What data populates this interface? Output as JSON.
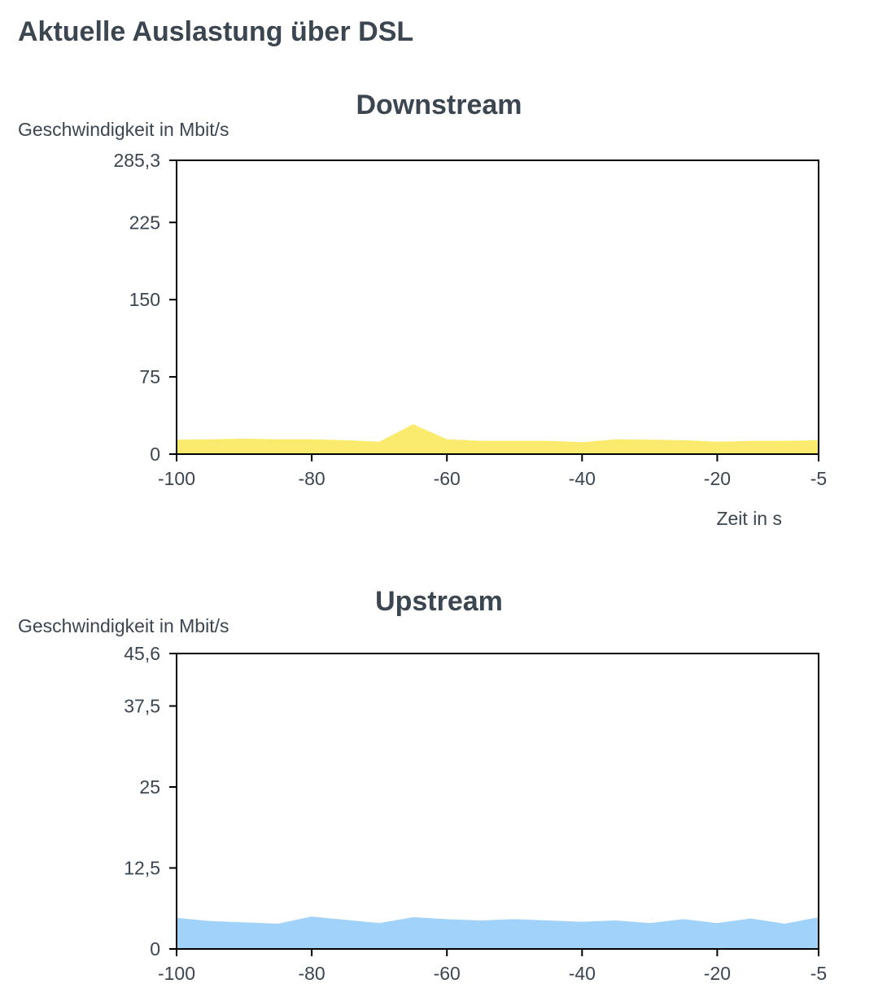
{
  "page": {
    "title": "Aktuelle Auslastung über DSL"
  },
  "chart_data": [
    {
      "type": "area",
      "title": "Downstream",
      "ylabel": "Geschwindigkeit in Mbit/s",
      "xlabel": "Zeit in s",
      "xlim": [
        -100,
        -5
      ],
      "ylim": [
        0,
        285.3
      ],
      "x_ticks": [
        -100,
        -80,
        -60,
        -40,
        -20,
        -5
      ],
      "x_tick_labels": [
        "-100",
        "-80",
        "-60",
        "-40",
        "-20",
        "-5"
      ],
      "y_ticks": [
        0,
        75,
        150,
        225,
        285.3
      ],
      "y_tick_labels": [
        "0",
        "75",
        "150",
        "225",
        "285,3"
      ],
      "grid": false,
      "color": "#faeb6e",
      "x": [
        -100,
        -95,
        -90,
        -85,
        -80,
        -75,
        -70,
        -65,
        -60,
        -55,
        -50,
        -45,
        -40,
        -35,
        -30,
        -25,
        -20,
        -15,
        -10,
        -5
      ],
      "values": [
        14,
        14.5,
        15,
        14.5,
        14.5,
        13.5,
        12,
        29,
        14.5,
        13,
        13,
        13,
        11.5,
        14.5,
        14,
        13.5,
        12,
        13,
        13,
        13.5
      ]
    },
    {
      "type": "area",
      "title": "Upstream",
      "ylabel": "Geschwindigkeit in Mbit/s",
      "xlabel": "",
      "xlim": [
        -100,
        -5
      ],
      "ylim": [
        0,
        45.6
      ],
      "x_ticks": [
        -100,
        -80,
        -60,
        -40,
        -20,
        -5
      ],
      "x_tick_labels": [
        "-100",
        "-80",
        "-60",
        "-40",
        "-20",
        "-5"
      ],
      "y_ticks": [
        0,
        12.5,
        25,
        37.5,
        45.6
      ],
      "y_tick_labels": [
        "0",
        "12,5",
        "25",
        "37,5",
        "45,6"
      ],
      "grid": false,
      "color": "#a0d2fa",
      "x": [
        -100,
        -95,
        -90,
        -85,
        -80,
        -75,
        -70,
        -65,
        -60,
        -55,
        -50,
        -45,
        -40,
        -35,
        -30,
        -25,
        -20,
        -15,
        -10,
        -5
      ],
      "values": [
        4.8,
        4.3,
        4.1,
        3.9,
        5.0,
        4.5,
        4.0,
        4.9,
        4.6,
        4.4,
        4.6,
        4.4,
        4.2,
        4.4,
        4.0,
        4.6,
        4.0,
        4.7,
        3.9,
        4.9
      ]
    }
  ]
}
